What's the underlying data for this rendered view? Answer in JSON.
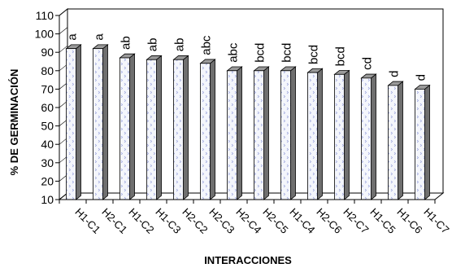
{
  "chart_data": {
    "type": "bar",
    "style": "3d-column",
    "title": "",
    "xlabel": "INTERACCIONES",
    "ylabel": "% DE GERMINACIÓN",
    "ylim": [
      10,
      110
    ],
    "yticks": [
      10,
      20,
      30,
      40,
      50,
      60,
      70,
      80,
      90,
      100,
      110
    ],
    "grid": false,
    "legend": "none",
    "categories": [
      "H1-C1",
      "H2-C1",
      "H1-C2",
      "H1-C3",
      "H2-C2",
      "H2-C3",
      "H2-C4",
      "H2-C5",
      "H1-C4",
      "H2-C6",
      "H2-C7",
      "H1-C5",
      "H1-C6",
      "H1-C7"
    ],
    "series": [
      {
        "values": [
          92,
          92,
          87,
          86,
          86,
          84,
          80,
          80,
          80,
          79,
          78,
          76,
          72,
          70
        ],
        "labels": [
          "a",
          "a",
          "ab",
          "ab",
          "ab",
          "abc",
          "abc",
          "bcd",
          "bcd",
          "bcd",
          "bcd",
          "cd",
          "d",
          "d"
        ]
      }
    ],
    "colors": {
      "bar_front": "#f4f6fc",
      "bar_pattern": "#9aa3dc",
      "bar_top": "#9a9a9a",
      "bar_side": "#6f6f6f",
      "wall": "#ffffff",
      "axis": "#000000"
    }
  }
}
